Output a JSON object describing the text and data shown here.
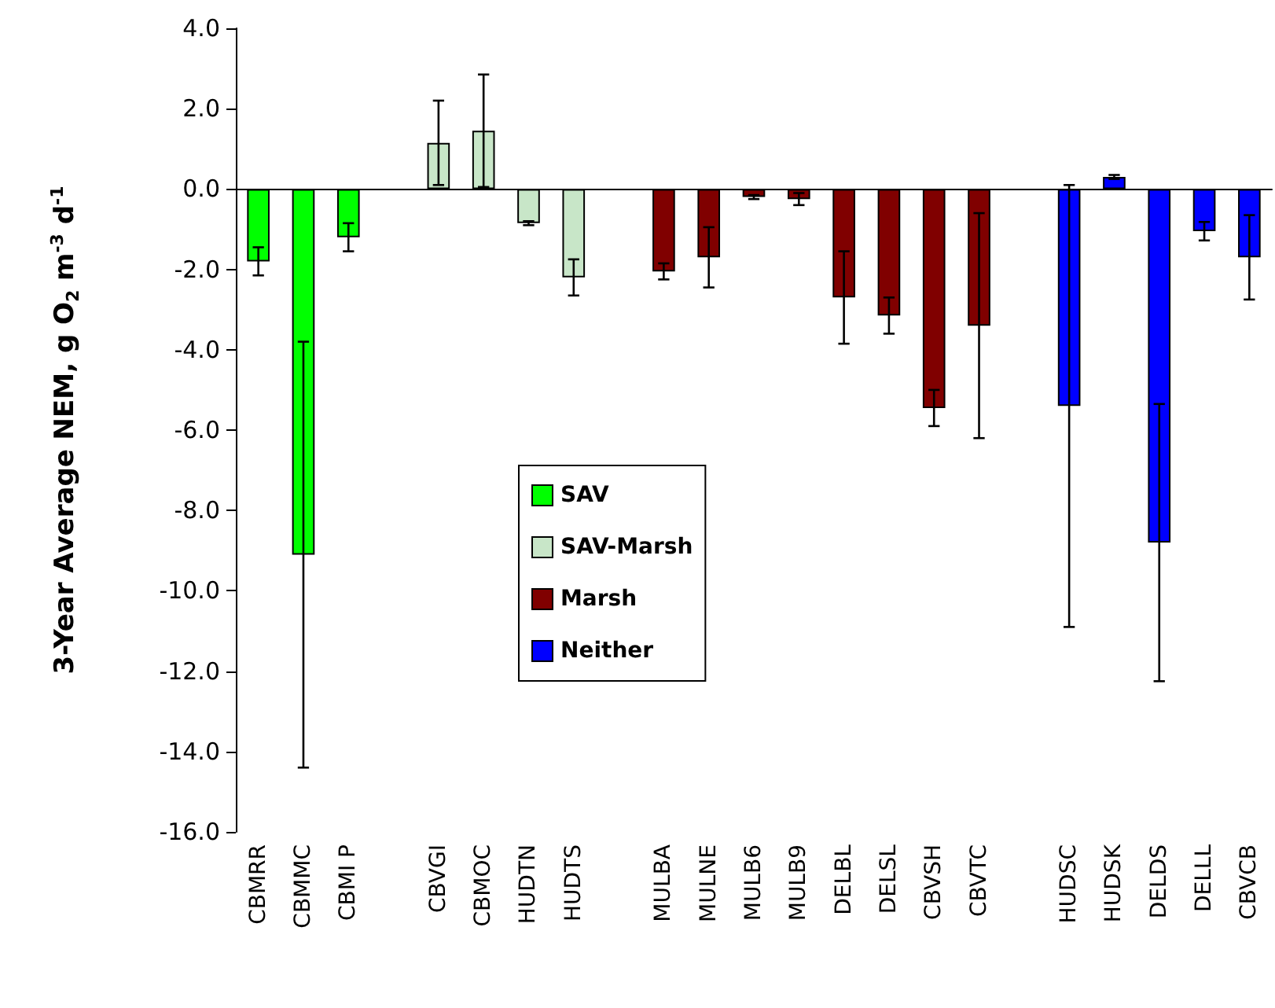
{
  "chart_data": {
    "type": "bar",
    "ylabel": "3-Year Average NEM, g O$_{2}$ m$^{-3}$ d$^{-1}$",
    "categories": [
      "CBMRR",
      "CBMMC",
      "CBMI P",
      null,
      "CBVGI",
      "CBMOC",
      "HUDTN",
      "HUDTS",
      null,
      "MULBA",
      "MULNE",
      "MULB6",
      "MULB9",
      "DELBL",
      "DELSL",
      "CBVSH",
      "CBVTC",
      null,
      "HUDSC",
      "HUDSK",
      "DELDS",
      "DELLL",
      "CBVCB"
    ],
    "series": [
      {
        "name": "SAV",
        "color": "#00ff00",
        "values": [
          -1.8,
          -9.1,
          -1.2,
          null,
          null,
          null,
          null,
          null,
          null,
          null,
          null,
          null,
          null,
          null,
          null,
          null,
          null,
          null,
          null,
          null,
          null,
          null,
          null
        ],
        "errors": [
          0.35,
          5.3,
          0.35,
          null,
          null,
          null,
          null,
          null,
          null,
          null,
          null,
          null,
          null,
          null,
          null,
          null,
          null,
          null,
          null,
          null,
          null,
          null,
          null
        ]
      },
      {
        "name": "SAV-Marsh",
        "color": "#c8e6c8",
        "values": [
          null,
          null,
          null,
          null,
          1.15,
          1.45,
          -0.85,
          -2.2,
          null,
          null,
          null,
          null,
          null,
          null,
          null,
          null,
          null,
          null,
          null,
          null,
          null,
          null,
          null
        ],
        "errors": [
          null,
          null,
          null,
          null,
          1.05,
          1.4,
          0.05,
          0.45,
          null,
          null,
          null,
          null,
          null,
          null,
          null,
          null,
          null,
          null,
          null,
          null,
          null,
          null,
          null
        ]
      },
      {
        "name": "Marsh",
        "color": "#800000",
        "values": [
          null,
          null,
          null,
          null,
          null,
          null,
          null,
          null,
          null,
          -2.05,
          -1.7,
          -0.2,
          -0.25,
          -2.7,
          -3.15,
          -5.45,
          -3.4,
          null,
          null,
          null,
          null,
          null,
          null
        ],
        "errors": [
          null,
          null,
          null,
          null,
          null,
          null,
          null,
          null,
          null,
          0.2,
          0.75,
          0.05,
          0.15,
          1.15,
          0.45,
          0.45,
          2.8,
          null,
          null,
          null,
          null,
          null,
          null
        ]
      },
      {
        "name": "Neither",
        "color": "#0000ff",
        "values": [
          null,
          null,
          null,
          null,
          null,
          null,
          null,
          null,
          null,
          null,
          null,
          null,
          null,
          null,
          null,
          null,
          null,
          null,
          -5.4,
          0.3,
          -8.8,
          -1.05,
          -1.7
        ],
        "errors": [
          null,
          null,
          null,
          null,
          null,
          null,
          null,
          null,
          null,
          null,
          null,
          null,
          null,
          null,
          null,
          null,
          null,
          null,
          5.5,
          0.05,
          3.45,
          0.23,
          1.05
        ]
      }
    ],
    "ylim": [
      -16,
      4
    ],
    "yticks": [
      {
        "value": -16,
        "label": "-16.0"
      },
      {
        "value": -14,
        "label": "-14.0"
      },
      {
        "value": -12,
        "label": "-12.0"
      },
      {
        "value": -10,
        "label": "-10.0"
      },
      {
        "value": -8,
        "label": "-8.0"
      },
      {
        "value": -6,
        "label": "-6.0"
      },
      {
        "value": -4,
        "label": "-4.0"
      },
      {
        "value": -2,
        "label": "-2.0"
      },
      {
        "value": 0,
        "label": "0.0"
      },
      {
        "value": 2,
        "label": "2.0"
      },
      {
        "value": 4,
        "label": "4.0"
      }
    ],
    "legend": "center"
  }
}
